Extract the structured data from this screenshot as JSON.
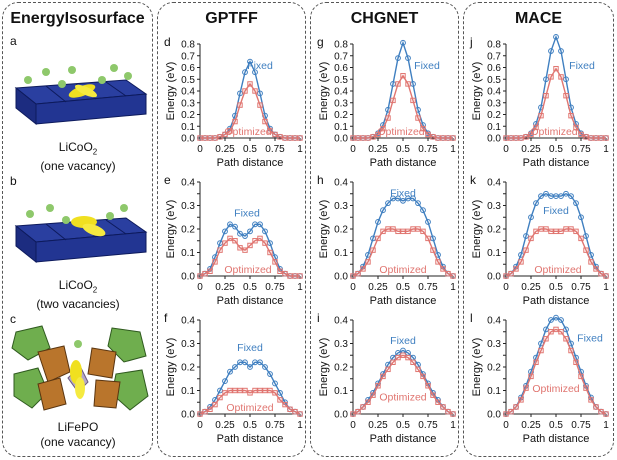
{
  "structures": {
    "title": "EnergyIsosurface",
    "items": [
      {
        "letter": "a",
        "formula": "LiCoO",
        "subscript": "2",
        "desc": "(one vacancy)"
      },
      {
        "letter": "b",
        "formula": "LiCoO",
        "subscript": "2",
        "desc": "(two vacancies)"
      },
      {
        "letter": "c",
        "formula": "LiFePO",
        "subscript": "",
        "desc": "(one vacancy)"
      }
    ]
  },
  "columns": [
    "GPTFF",
    "CHGNET",
    "MACE"
  ],
  "colors": {
    "fixed": "#3f7fc0",
    "optimized": "#e07570"
  },
  "chart_data": [
    {
      "type": "line",
      "panel": "d",
      "model": "GPTFF",
      "system": "LiCoO2 one vacancy",
      "xlabel": "Path distance",
      "ylabel": "Energy (eV)",
      "xlim": [
        0,
        1
      ],
      "ylim": [
        0,
        0.8
      ],
      "yticks": [
        0,
        0.1,
        0.2,
        0.3,
        0.4,
        0.5,
        0.6,
        0.7,
        0.8
      ],
      "xticks": [
        "0",
        "0.25",
        "0.5",
        "0.75",
        "1"
      ],
      "fixed_label_pos": [
        0.6,
        0.62
      ],
      "opt_label_pos": [
        0.48,
        0.06
      ],
      "x": [
        0,
        0.05,
        0.1,
        0.15,
        0.2,
        0.25,
        0.3,
        0.35,
        0.4,
        0.45,
        0.5,
        0.55,
        0.6,
        0.65,
        0.7,
        0.75,
        0.8,
        0.85,
        0.9,
        0.95,
        1
      ],
      "series": [
        {
          "name": "Fixed",
          "values": [
            0,
            0,
            0,
            0,
            0.01,
            0.03,
            0.08,
            0.19,
            0.38,
            0.56,
            0.65,
            0.56,
            0.38,
            0.19,
            0.08,
            0.03,
            0.01,
            0,
            0,
            0,
            0
          ]
        },
        {
          "name": "Optimized",
          "values": [
            0,
            0,
            0,
            0,
            0.01,
            0.03,
            0.06,
            0.14,
            0.28,
            0.4,
            0.46,
            0.4,
            0.28,
            0.14,
            0.06,
            0.03,
            0.01,
            0,
            0,
            0,
            0
          ]
        }
      ]
    },
    {
      "type": "line",
      "panel": "g",
      "model": "CHGNET",
      "system": "LiCoO2 one vacancy",
      "xlabel": "Path distance",
      "ylabel": "Energy (eV)",
      "xlim": [
        0,
        1
      ],
      "ylim": [
        0,
        0.8
      ],
      "yticks": [
        0,
        0.1,
        0.2,
        0.3,
        0.4,
        0.5,
        0.6,
        0.7,
        0.8
      ],
      "xticks": [
        "0",
        "0.25",
        "0.5",
        "0.75",
        "1"
      ],
      "fixed_label_pos": [
        0.74,
        0.62
      ],
      "opt_label_pos": [
        0.48,
        0.06
      ],
      "x": [
        0,
        0.05,
        0.1,
        0.15,
        0.2,
        0.25,
        0.3,
        0.35,
        0.4,
        0.45,
        0.5,
        0.55,
        0.6,
        0.65,
        0.7,
        0.75,
        0.8,
        0.85,
        0.9,
        0.95,
        1
      ],
      "series": [
        {
          "name": "Fixed",
          "values": [
            0,
            0,
            0,
            0,
            0.01,
            0.04,
            0.11,
            0.24,
            0.46,
            0.68,
            0.81,
            0.68,
            0.46,
            0.24,
            0.11,
            0.04,
            0.01,
            0,
            0,
            0,
            0
          ]
        },
        {
          "name": "Optimized",
          "values": [
            0,
            0,
            0,
            0,
            0.01,
            0.03,
            0.08,
            0.17,
            0.32,
            0.46,
            0.53,
            0.46,
            0.32,
            0.17,
            0.08,
            0.03,
            0.01,
            0,
            0,
            0,
            0
          ]
        }
      ]
    },
    {
      "type": "line",
      "panel": "j",
      "model": "MACE",
      "system": "LiCoO2 one vacancy",
      "xlabel": "Path distance",
      "ylabel": "Energy (eV)",
      "xlim": [
        0,
        1
      ],
      "ylim": [
        0,
        0.8
      ],
      "yticks": [
        0,
        0.1,
        0.2,
        0.3,
        0.4,
        0.5,
        0.6,
        0.7,
        0.8
      ],
      "xticks": [
        "0",
        "0.25",
        "0.5",
        "0.75",
        "1"
      ],
      "fixed_label_pos": [
        0.76,
        0.62
      ],
      "opt_label_pos": [
        0.48,
        0.06
      ],
      "x": [
        0,
        0.05,
        0.1,
        0.15,
        0.2,
        0.25,
        0.3,
        0.35,
        0.4,
        0.45,
        0.5,
        0.55,
        0.6,
        0.65,
        0.7,
        0.75,
        0.8,
        0.85,
        0.9,
        0.95,
        1
      ],
      "series": [
        {
          "name": "Fixed",
          "values": [
            0,
            0,
            0,
            0,
            0.01,
            0.04,
            0.12,
            0.26,
            0.5,
            0.74,
            0.86,
            0.74,
            0.5,
            0.26,
            0.12,
            0.04,
            0.01,
            0,
            0,
            0,
            0
          ]
        },
        {
          "name": "Optimized",
          "values": [
            0,
            0,
            0,
            0,
            0.01,
            0.03,
            0.09,
            0.19,
            0.36,
            0.52,
            0.59,
            0.52,
            0.36,
            0.19,
            0.09,
            0.03,
            0.01,
            0,
            0,
            0,
            0
          ]
        }
      ]
    },
    {
      "type": "line",
      "panel": "e",
      "model": "GPTFF",
      "system": "LiCoO2 two vacancies",
      "xlabel": "Path distance",
      "ylabel": "Energy (eV)",
      "xlim": [
        0,
        1
      ],
      "ylim": [
        0,
        0.4
      ],
      "yticks": [
        0,
        0.05,
        0.1,
        0.15,
        0.2,
        0.25,
        0.3,
        0.35,
        0.4
      ],
      "xticks": [
        "0",
        "0.25",
        "0.5",
        "0.75",
        "1"
      ],
      "fixed_label_pos": [
        0.47,
        0.27
      ],
      "opt_label_pos": [
        0.48,
        0.03
      ],
      "x": [
        0,
        0.05,
        0.1,
        0.15,
        0.2,
        0.25,
        0.3,
        0.35,
        0.4,
        0.45,
        0.5,
        0.55,
        0.6,
        0.65,
        0.7,
        0.75,
        0.8,
        0.85,
        0.9,
        0.95,
        1
      ],
      "series": [
        {
          "name": "Fixed",
          "values": [
            0,
            0.01,
            0.03,
            0.08,
            0.14,
            0.19,
            0.22,
            0.21,
            0.18,
            0.17,
            0.19,
            0.22,
            0.22,
            0.19,
            0.14,
            0.08,
            0.03,
            0.01,
            0,
            0,
            0
          ]
        },
        {
          "name": "Optimized",
          "values": [
            0,
            0.01,
            0.02,
            0.06,
            0.11,
            0.14,
            0.16,
            0.15,
            0.12,
            0.11,
            0.13,
            0.15,
            0.16,
            0.14,
            0.1,
            0.06,
            0.02,
            0.01,
            0,
            0,
            0
          ]
        }
      ]
    },
    {
      "type": "line",
      "panel": "h",
      "model": "CHGNET",
      "system": "LiCoO2 two vacancies",
      "xlabel": "Path distance",
      "ylabel": "Energy (eV)",
      "xlim": [
        0,
        1
      ],
      "ylim": [
        0,
        0.4
      ],
      "yticks": [
        0,
        0.05,
        0.1,
        0.15,
        0.2,
        0.25,
        0.3,
        0.35,
        0.4
      ],
      "xticks": [
        "0",
        "0.25",
        "0.5",
        "0.75",
        "1"
      ],
      "fixed_label_pos": [
        0.5,
        0.355
      ],
      "opt_label_pos": [
        0.5,
        0.03
      ],
      "x": [
        0,
        0.05,
        0.1,
        0.15,
        0.2,
        0.25,
        0.3,
        0.35,
        0.4,
        0.45,
        0.5,
        0.55,
        0.6,
        0.65,
        0.7,
        0.75,
        0.8,
        0.85,
        0.9,
        0.95,
        1
      ],
      "series": [
        {
          "name": "Fixed",
          "values": [
            0,
            0.01,
            0.04,
            0.09,
            0.16,
            0.23,
            0.28,
            0.31,
            0.33,
            0.33,
            0.32,
            0.33,
            0.33,
            0.31,
            0.28,
            0.23,
            0.16,
            0.09,
            0.04,
            0.01,
            0
          ]
        },
        {
          "name": "Optimized",
          "values": [
            0,
            0.01,
            0.03,
            0.06,
            0.11,
            0.16,
            0.19,
            0.2,
            0.2,
            0.19,
            0.19,
            0.19,
            0.2,
            0.2,
            0.19,
            0.16,
            0.11,
            0.06,
            0.03,
            0.01,
            0
          ]
        }
      ]
    },
    {
      "type": "line",
      "panel": "k",
      "model": "MACE",
      "system": "LiCoO2 two vacancies",
      "xlabel": "Path distance",
      "ylabel": "Energy (eV)",
      "xlim": [
        0,
        1
      ],
      "ylim": [
        0,
        0.4
      ],
      "yticks": [
        0,
        0.05,
        0.1,
        0.15,
        0.2,
        0.25,
        0.3,
        0.35,
        0.4
      ],
      "xticks": [
        "0",
        "0.25",
        "0.5",
        "0.75",
        "1"
      ],
      "fixed_label_pos": [
        0.5,
        0.28
      ],
      "opt_label_pos": [
        0.52,
        0.03
      ],
      "x": [
        0,
        0.05,
        0.1,
        0.15,
        0.2,
        0.25,
        0.3,
        0.35,
        0.4,
        0.45,
        0.5,
        0.55,
        0.6,
        0.65,
        0.7,
        0.75,
        0.8,
        0.85,
        0.9,
        0.95,
        1
      ],
      "series": [
        {
          "name": "Fixed",
          "values": [
            0,
            0.01,
            0.04,
            0.09,
            0.17,
            0.25,
            0.31,
            0.34,
            0.35,
            0.34,
            0.34,
            0.34,
            0.35,
            0.34,
            0.31,
            0.25,
            0.17,
            0.09,
            0.04,
            0.01,
            0
          ]
        },
        {
          "name": "Optimized",
          "values": [
            0,
            0.01,
            0.03,
            0.06,
            0.11,
            0.16,
            0.19,
            0.2,
            0.2,
            0.19,
            0.19,
            0.19,
            0.2,
            0.2,
            0.19,
            0.16,
            0.11,
            0.06,
            0.03,
            0.01,
            0
          ]
        }
      ]
    },
    {
      "type": "line",
      "panel": "f",
      "model": "GPTFF",
      "system": "LiFePO one vacancy",
      "xlabel": "Path distance",
      "ylabel": "Energy (eV)",
      "xlim": [
        0,
        1
      ],
      "ylim": [
        0,
        0.4
      ],
      "yticks": [
        0,
        0.05,
        0.1,
        0.15,
        0.2,
        0.25,
        0.3,
        0.35,
        0.4
      ],
      "xticks": [
        "0",
        "0.25",
        "0.5",
        "0.75",
        "1"
      ],
      "fixed_label_pos": [
        0.5,
        0.285
      ],
      "opt_label_pos": [
        0.5,
        0.03
      ],
      "x": [
        0,
        0.05,
        0.1,
        0.15,
        0.2,
        0.25,
        0.3,
        0.35,
        0.4,
        0.45,
        0.5,
        0.55,
        0.6,
        0.65,
        0.7,
        0.75,
        0.8,
        0.85,
        0.9,
        0.95,
        1
      ],
      "series": [
        {
          "name": "Fixed",
          "values": [
            0,
            0.01,
            0.03,
            0.06,
            0.1,
            0.14,
            0.18,
            0.2,
            0.22,
            0.22,
            0.2,
            0.22,
            0.22,
            0.2,
            0.17,
            0.13,
            0.09,
            0.05,
            0.02,
            0.01,
            0
          ]
        },
        {
          "name": "Optimized",
          "values": [
            0,
            0.01,
            0.02,
            0.04,
            0.07,
            0.09,
            0.1,
            0.1,
            0.1,
            0.1,
            0.09,
            0.1,
            0.1,
            0.1,
            0.1,
            0.09,
            0.06,
            0.04,
            0.02,
            0.01,
            0
          ]
        }
      ]
    },
    {
      "type": "line",
      "panel": "i",
      "model": "CHGNET",
      "system": "LiFePO one vacancy",
      "xlabel": "Path distance",
      "ylabel": "Energy (eV)",
      "xlim": [
        0,
        1
      ],
      "ylim": [
        0,
        0.4
      ],
      "yticks": [
        0,
        0.05,
        0.1,
        0.15,
        0.2,
        0.25,
        0.3,
        0.35,
        0.4
      ],
      "xticks": [
        "0",
        "0.25",
        "0.5",
        "0.75",
        "1"
      ],
      "fixed_label_pos": [
        0.5,
        0.315
      ],
      "opt_label_pos": [
        0.5,
        0.075
      ],
      "x": [
        0,
        0.05,
        0.1,
        0.15,
        0.2,
        0.25,
        0.3,
        0.35,
        0.4,
        0.45,
        0.5,
        0.55,
        0.6,
        0.65,
        0.7,
        0.75,
        0.8,
        0.85,
        0.9,
        0.95,
        1
      ],
      "series": [
        {
          "name": "Fixed",
          "values": [
            0,
            0.01,
            0.03,
            0.06,
            0.09,
            0.13,
            0.17,
            0.21,
            0.24,
            0.26,
            0.27,
            0.26,
            0.24,
            0.21,
            0.17,
            0.13,
            0.09,
            0.06,
            0.03,
            0.01,
            0
          ]
        },
        {
          "name": "Optimized",
          "values": [
            0,
            0.01,
            0.03,
            0.05,
            0.08,
            0.12,
            0.16,
            0.19,
            0.22,
            0.24,
            0.25,
            0.24,
            0.22,
            0.19,
            0.16,
            0.12,
            0.08,
            0.05,
            0.03,
            0.01,
            0
          ]
        }
      ]
    },
    {
      "type": "line",
      "panel": "l",
      "model": "MACE",
      "system": "LiFePO one vacancy",
      "xlabel": "Path distance",
      "ylabel": "Energy (eV)",
      "xlim": [
        0,
        1
      ],
      "ylim": [
        0,
        0.4
      ],
      "yticks": [
        0,
        0.05,
        0.1,
        0.15,
        0.2,
        0.25,
        0.3,
        0.35,
        0.4
      ],
      "xticks": [
        "0",
        "0.25",
        "0.5",
        "0.75",
        "1"
      ],
      "fixed_label_pos": [
        0.84,
        0.325
      ],
      "opt_label_pos": [
        0.5,
        0.11
      ],
      "x": [
        0,
        0.05,
        0.1,
        0.15,
        0.2,
        0.25,
        0.3,
        0.35,
        0.4,
        0.45,
        0.5,
        0.55,
        0.6,
        0.65,
        0.7,
        0.75,
        0.8,
        0.85,
        0.9,
        0.95,
        1
      ],
      "series": [
        {
          "name": "Fixed",
          "values": [
            0,
            0.01,
            0.03,
            0.07,
            0.12,
            0.18,
            0.24,
            0.3,
            0.36,
            0.4,
            0.41,
            0.4,
            0.36,
            0.3,
            0.24,
            0.18,
            0.12,
            0.07,
            0.03,
            0.01,
            0
          ]
        },
        {
          "name": "Optimized",
          "values": [
            0,
            0.01,
            0.03,
            0.06,
            0.11,
            0.16,
            0.22,
            0.27,
            0.32,
            0.35,
            0.36,
            0.35,
            0.32,
            0.27,
            0.22,
            0.16,
            0.11,
            0.06,
            0.03,
            0.01,
            0
          ]
        }
      ]
    }
  ]
}
